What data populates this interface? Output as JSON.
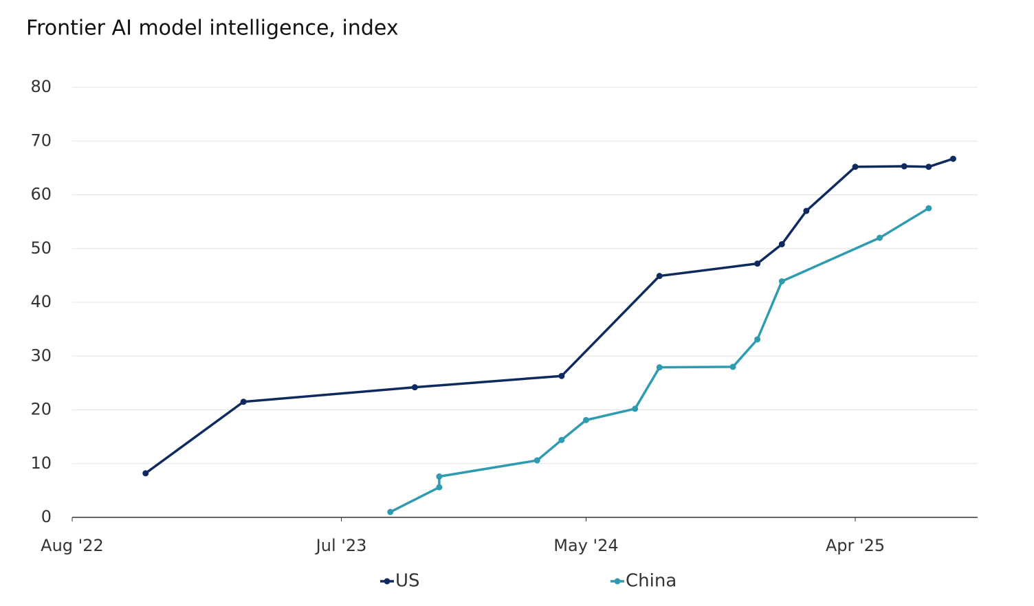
{
  "chart_data": {
    "type": "line",
    "title": "Frontier AI model intelligence, index",
    "series": [
      {
        "name": "US",
        "color": "#0f2a5e",
        "x": [
          "2022-11",
          "2023-03",
          "2023-10",
          "2024-04",
          "2024-08",
          "2024-12",
          "2025-01",
          "2025-02",
          "2025-04",
          "2025-06",
          "2025-07",
          "2025-08"
        ],
        "values": [
          8.2,
          21.5,
          24.2,
          26.3,
          44.9,
          47.2,
          50.8,
          57.0,
          65.2,
          65.3,
          65.2,
          66.7
        ]
      },
      {
        "name": "China",
        "color": "#2e9bb0",
        "x": [
          "2023-09",
          "2023-11",
          "2023-11",
          "2024-03",
          "2024-04",
          "2024-05",
          "2024-07",
          "2024-08",
          "2024-11",
          "2024-12",
          "2025-01",
          "2025-05",
          "2025-07"
        ],
        "values": [
          1.0,
          5.6,
          7.6,
          10.6,
          14.4,
          18.1,
          20.2,
          27.9,
          28.0,
          33.1,
          43.9,
          52.0,
          57.5
        ]
      }
    ],
    "xlim": [
      "2022-08",
      "2025-09"
    ],
    "xticks": [
      {
        "value": "2022-08",
        "label": "Aug '22"
      },
      {
        "value": "2023-07",
        "label": "Jul '23"
      },
      {
        "value": "2024-05",
        "label": "May '24"
      },
      {
        "value": "2025-04",
        "label": "Apr '25"
      }
    ],
    "ylim": [
      0,
      80
    ],
    "yticks": [
      0,
      10,
      20,
      30,
      40,
      50,
      60,
      70,
      80
    ],
    "grid": true,
    "legend": "bottom"
  }
}
